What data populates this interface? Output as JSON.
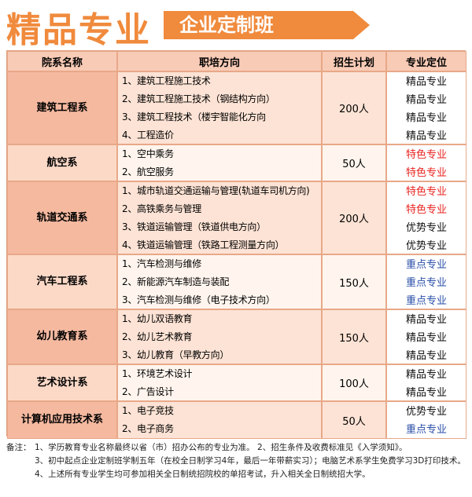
{
  "header": {
    "title": "精品专业",
    "banner": "企业定制班"
  },
  "table": {
    "columns": [
      "院系名称",
      "职培方向",
      "招生计划",
      "专业定位"
    ],
    "groups": [
      {
        "dept": "建筑工程系",
        "plan": "200人",
        "items": [
          {
            "direction": "1、建筑工程施工技术",
            "position": "精品专业"
          },
          {
            "direction": "2、建筑工程施工技术（钢结构方向）",
            "position": "精品专业"
          },
          {
            "direction": "3、建筑工程技术（楼宇智能化方向",
            "position": "精品专业"
          },
          {
            "direction": "4、工程造价",
            "position": "精品专业"
          }
        ]
      },
      {
        "dept": "航空系",
        "plan": "50人",
        "items": [
          {
            "direction": "1、空中乘务",
            "position": "特色专业"
          },
          {
            "direction": "2、航空服务",
            "position": "特色专业"
          }
        ]
      },
      {
        "dept": "轨道交通系",
        "plan": "200人",
        "items": [
          {
            "direction": "1、城市轨道交通运输与管理(轨道车司机方向)",
            "position": "特色专业"
          },
          {
            "direction": "2、高铁乘务与管理",
            "position": "特色专业"
          },
          {
            "direction": "3、铁道运输管理（铁道供电方向）",
            "position": "优势专业"
          },
          {
            "direction": "4、铁道运输管理（铁路工程测量方向）",
            "position": "优势专业"
          }
        ]
      },
      {
        "dept": "汽车工程系",
        "plan": "150人",
        "items": [
          {
            "direction": "1、汽车检测与维修",
            "position": "重点专业"
          },
          {
            "direction": "2、新能源汽车制造与装配",
            "position": "重点专业"
          },
          {
            "direction": "3、汽车检测与维修（电子技术方向）",
            "position": "重点专业"
          }
        ]
      },
      {
        "dept": "幼儿教育系",
        "plan": "150人",
        "items": [
          {
            "direction": "1、幼儿双语教育",
            "position": "精品专业"
          },
          {
            "direction": "2、幼儿艺术教育",
            "position": "精品专业"
          },
          {
            "direction": "3、幼儿教育（早教方向）",
            "position": "精品专业"
          }
        ]
      },
      {
        "dept": "艺术设计系",
        "plan": "100人",
        "items": [
          {
            "direction": "1、环境艺术设计",
            "position": "精品专业"
          },
          {
            "direction": "2、广告设计",
            "position": "精品专业"
          }
        ]
      },
      {
        "dept": "计算机应用技术系",
        "plan": "50人",
        "items": [
          {
            "direction": "1、电子竞技",
            "position": "优势专业"
          },
          {
            "direction": "2、电子商务",
            "position": "重点专业"
          }
        ]
      }
    ]
  },
  "notes": {
    "label": "备注：",
    "lines": [
      "1、学历教育专业名称最终以省（市）招办公布的专业为准。 2、招生条件及收费标准见《入学须知》。",
      "3、初中起点企业定制班学制五年（在校全日制学习4年，最后一年带薪实习）；电脑艺术系学生免费学习3D打印技术。",
      "4、上述所有专业学生均可参加相关全日制统招院校的单招考试，升入相关全日制统招大学。"
    ]
  }
}
